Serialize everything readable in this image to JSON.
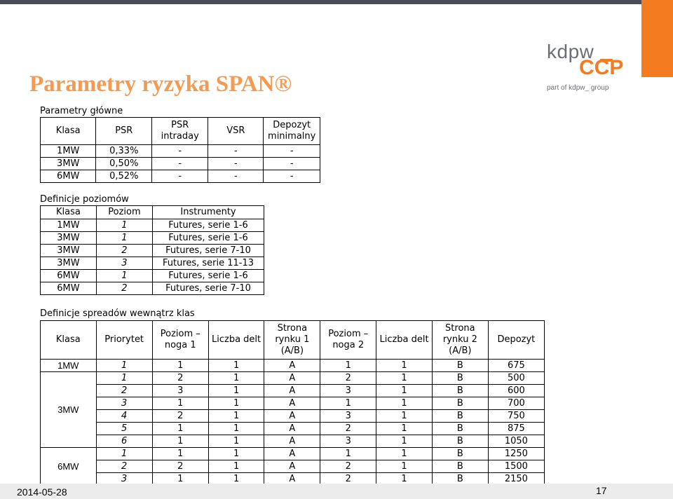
{
  "slide": {
    "title": "Parametry ryzyka SPAN®",
    "date": "2014-05-28",
    "page_number": "17",
    "accent_color": "#f47c20",
    "title_color": "#f59a52"
  },
  "logo": {
    "kdpw": "kdpw",
    "ccp": "CCP",
    "part_of": "part of kdpw_ group"
  },
  "main_params": {
    "caption": "Parametry główne",
    "headers": [
      "Klasa",
      "PSR",
      "PSR intraday",
      "VSR",
      "Depozyt minimalny"
    ],
    "rows": [
      [
        "1MW",
        "0,33%",
        "-",
        "-",
        "-"
      ],
      [
        "3MW",
        "0,50%",
        "-",
        "-",
        "-"
      ],
      [
        "6MW",
        "0,52%",
        "-",
        "-",
        "-"
      ]
    ]
  },
  "levels": {
    "caption": "Definicje poziomów",
    "headers": [
      "Klasa",
      "Poziom",
      "Instrumenty"
    ],
    "rows": [
      [
        "1MW",
        "1",
        "Futures, serie 1-6"
      ],
      [
        "3MW",
        "1",
        "Futures, serie 1-6"
      ],
      [
        "3MW",
        "2",
        "Futures, serie 7-10"
      ],
      [
        "3MW",
        "3",
        "Futures, serie 11-13"
      ],
      [
        "6MW",
        "1",
        "Futures, serie 1-6"
      ],
      [
        "6MW",
        "2",
        "Futures, serie 7-10"
      ]
    ]
  },
  "spreads": {
    "caption": "Definicje spreadów wewnątrz klas",
    "headers": [
      "Klasa",
      "Priorytet",
      "Poziom – noga 1",
      "Liczba delt",
      "Strona rynku 1 (A/B)",
      "Poziom – noga 2",
      "Liczba delt",
      "Strona rynku 2 (A/B)",
      "Depozyt"
    ],
    "groups": [
      {
        "klasa": "1MW",
        "rows": [
          [
            "1",
            "1",
            "1",
            "A",
            "1",
            "1",
            "B",
            "675"
          ]
        ]
      },
      {
        "klasa": "3MW",
        "rows": [
          [
            "1",
            "2",
            "1",
            "A",
            "2",
            "1",
            "B",
            "500"
          ],
          [
            "2",
            "3",
            "1",
            "A",
            "3",
            "1",
            "B",
            "600"
          ],
          [
            "3",
            "1",
            "1",
            "A",
            "1",
            "1",
            "B",
            "700"
          ],
          [
            "4",
            "2",
            "1",
            "A",
            "3",
            "1",
            "B",
            "750"
          ],
          [
            "5",
            "1",
            "1",
            "A",
            "2",
            "1",
            "B",
            "875"
          ],
          [
            "6",
            "1",
            "1",
            "A",
            "3",
            "1",
            "B",
            "1050"
          ]
        ]
      },
      {
        "klasa": "6MW",
        "rows": [
          [
            "1",
            "1",
            "1",
            "A",
            "1",
            "1",
            "B",
            "1250"
          ],
          [
            "2",
            "2",
            "1",
            "A",
            "2",
            "1",
            "B",
            "1500"
          ],
          [
            "3",
            "1",
            "1",
            "A",
            "2",
            "1",
            "B",
            "2150"
          ]
        ]
      }
    ]
  }
}
